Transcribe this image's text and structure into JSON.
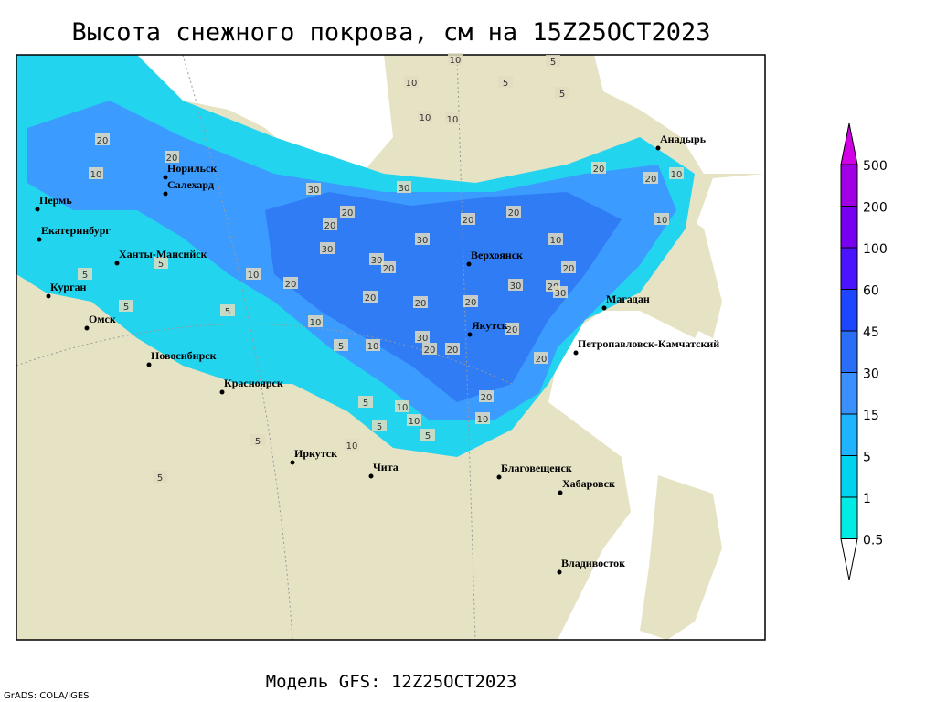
{
  "header": {
    "title": "Высота снежного покрова, см на 15Z25OCT2023"
  },
  "map": {
    "cities": [
      "Анадырь",
      "Норильск",
      "Салехард",
      "Пермь",
      "Екатеринбург",
      "Ханты-Мансийск",
      "Курган",
      "Омск",
      "Новосибирск",
      "Красноярск",
      "Верхоянск",
      "Якутск",
      "Магадан",
      "Петропавловск-Камчатский",
      "Иркутск",
      "Чита",
      "Благовещенск",
      "Хабаровск",
      "Владивосток"
    ],
    "contour_labels": [
      10,
      5,
      10,
      5,
      5,
      10,
      10,
      20,
      20,
      10,
      20,
      20,
      10,
      30,
      30,
      20,
      20,
      20,
      10,
      20,
      30,
      5,
      30,
      30,
      20,
      10,
      20,
      5,
      10,
      20,
      30,
      20,
      30,
      20,
      20,
      20,
      5,
      5,
      10,
      20,
      30,
      20,
      5,
      10,
      20,
      20,
      20,
      10,
      5,
      10,
      5,
      5,
      10,
      5,
      10,
      5
    ]
  },
  "colorbar": {
    "levels": [
      500,
      200,
      100,
      60,
      45,
      30,
      15,
      5,
      1,
      0.5
    ]
  },
  "footer": {
    "model": "Модель GFS: 12Z25OCT2023",
    "credit": "GrADS: COLA/IGES"
  }
}
